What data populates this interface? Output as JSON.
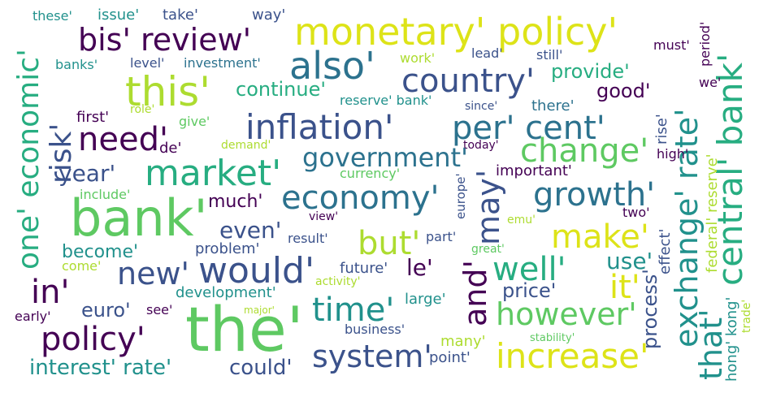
{
  "words": {
    "the": "the'",
    "bank": "bank'",
    "monetary_policy": "monetary' policy'",
    "bis_review": "bis' review'",
    "also": "also'",
    "country": "country'",
    "inflation": "inflation'",
    "per_cent": "per' cent'",
    "market": "market'",
    "economy": "economy'",
    "would": "would'",
    "central_bank": "central' bank'",
    "exchange_rate": "exchange' rate'",
    "one_economic": "one' economic'",
    "risk": "risk'",
    "this": "this'",
    "change": "change'",
    "growth": "growth'",
    "government": "government'",
    "increase": "increase'",
    "time": "time'",
    "system": "system'",
    "policy": "policy'",
    "new": "new'",
    "need": "need'",
    "make": "make'",
    "may": "may'",
    "and": "and'",
    "in": "in'",
    "that": "that'",
    "well": "well'",
    "it": "it'",
    "however": "however'",
    "but": "but'",
    "even": "even'",
    "year": "year'",
    "interest_rate": "interest' rate'",
    "could": "could'",
    "euro": "euro'",
    "le": "le'",
    "use": "use'",
    "process": "process'",
    "price": "price'",
    "provide": "provide'",
    "good": "good'",
    "continue": "continue'",
    "much": "much'",
    "become": "become'",
    "development": "development'",
    "future": "future'",
    "business": "business'",
    "large": "large'",
    "point": "point'",
    "many": "many'",
    "result": "result'",
    "part": "part'",
    "problem": "problem'",
    "these": "these'",
    "issue": "issue'",
    "take": "take'",
    "way": "way'",
    "banks": "banks'",
    "level": "level'",
    "investment": "investment'",
    "work": "work'",
    "lead": "lead'",
    "still": "still'",
    "reserve_bank": "reserve' bank'",
    "since": "since'",
    "there": "there'",
    "first": "first'",
    "role": "role'",
    "give": "give'",
    "de": "de'",
    "demand": "demand'",
    "today": "today'",
    "important": "important'",
    "currency": "currency'",
    "include": "include'",
    "view": "view'",
    "two": "two'",
    "emu": "emu'",
    "europe": "europe'",
    "great": "great'",
    "come": "come'",
    "activity": "activity'",
    "early": "early'",
    "see": "see'",
    "major": "major'",
    "stability": "stability'",
    "effect": "effect'",
    "federal_reserve": "federal' reserve'",
    "hong_kong": "hong' kong'",
    "trade": "trade'",
    "high": "high'",
    "rise": "rise'",
    "we": "we'",
    "must": "must'",
    "period": "period'"
  },
  "colors": {
    "dark_purple": "#440154",
    "indigo": "#3b528b",
    "teal_blue": "#2c728e",
    "teal": "#21918c",
    "sea_green": "#27ad81",
    "green": "#5ec962",
    "lime": "#addc30",
    "yellow": "#dde318"
  }
}
